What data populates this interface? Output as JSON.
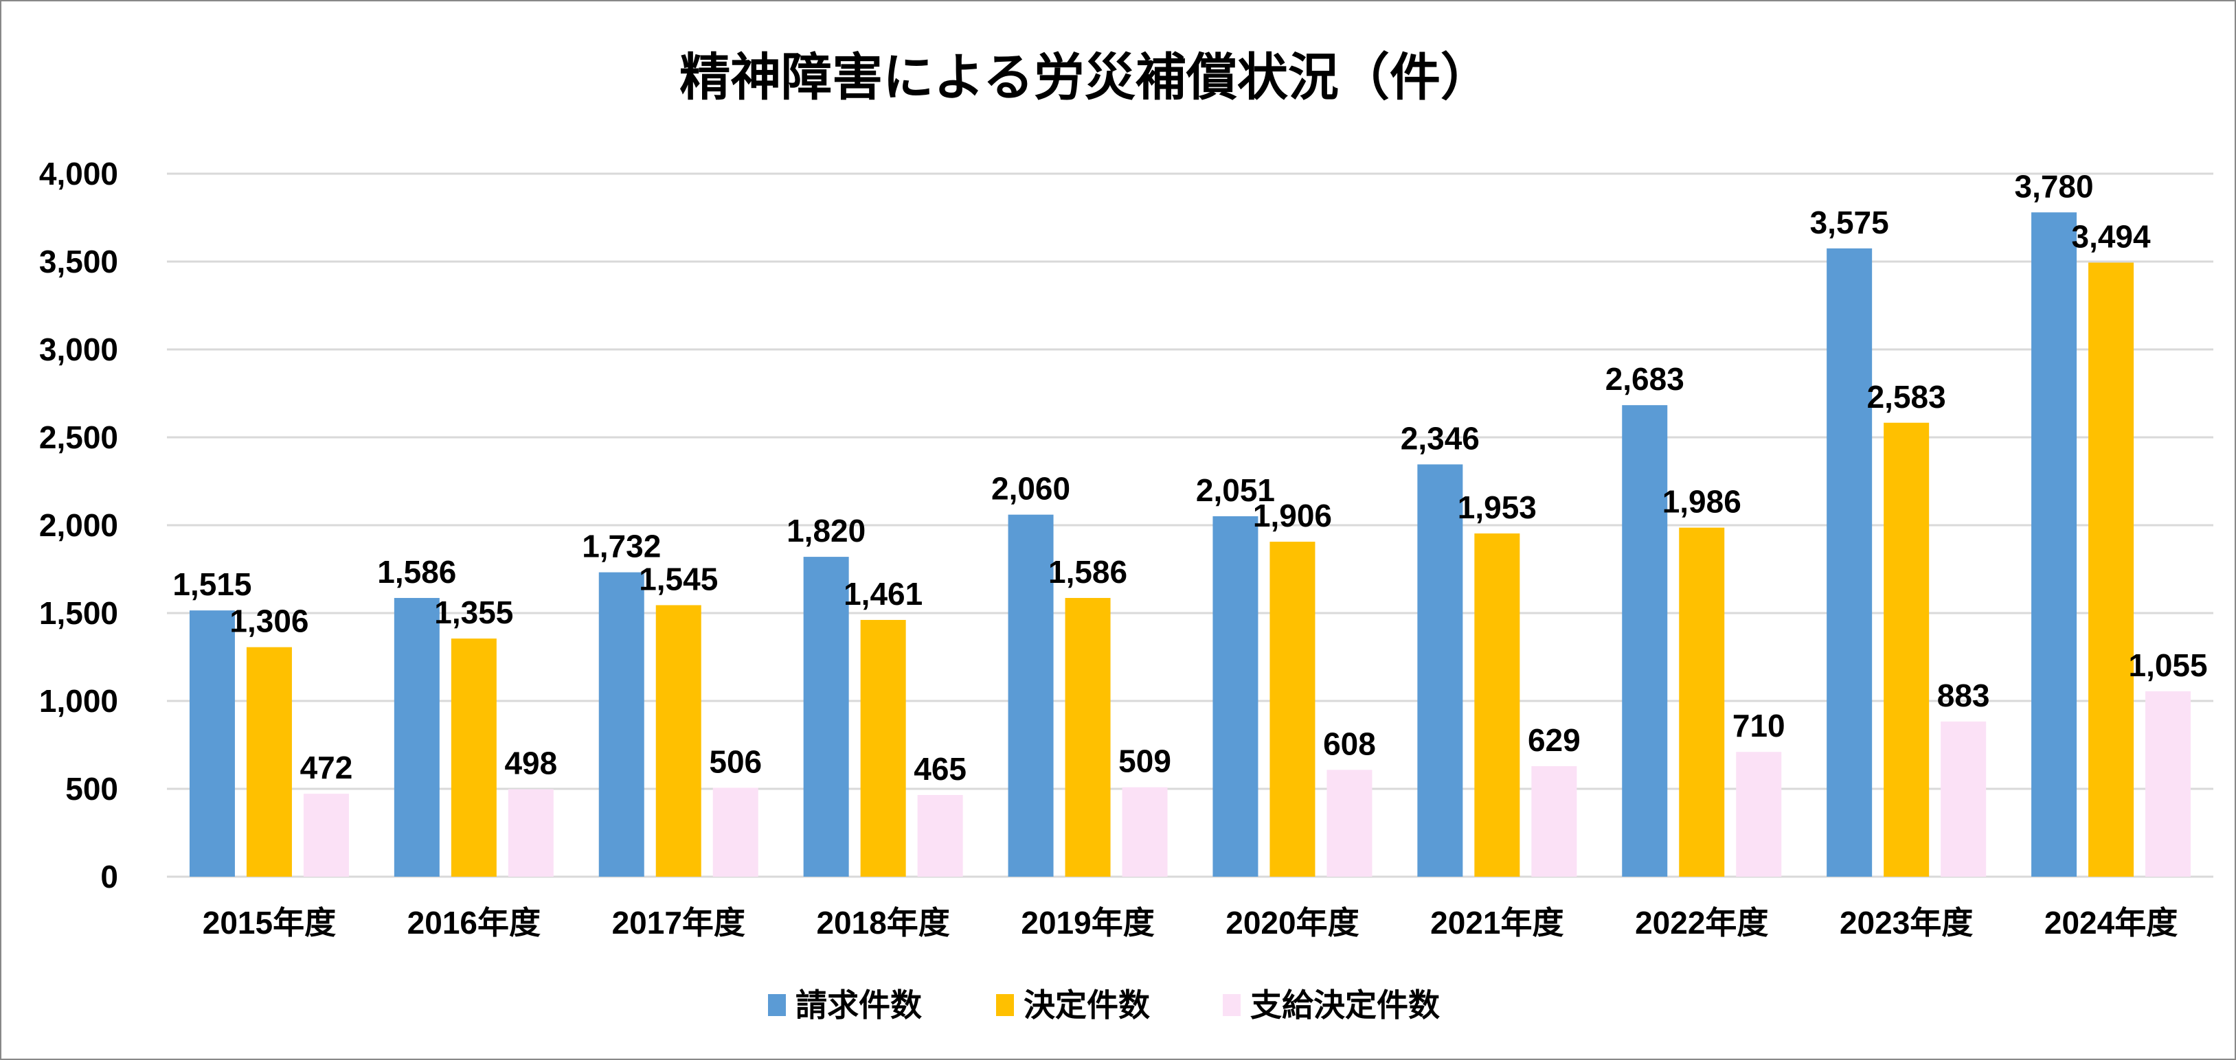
{
  "chart_data": {
    "type": "bar",
    "title": "精神障害による労災補償状況（件）",
    "xlabel": "",
    "ylabel": "",
    "categories": [
      "2015年度",
      "2016年度",
      "2017年度",
      "2018年度",
      "2019年度",
      "2020年度",
      "2021年度",
      "2022年度",
      "2023年度",
      "2024年度"
    ],
    "series": [
      {
        "name": "請求件数",
        "color": "#5B9BD5",
        "values": [
          1515,
          1586,
          1732,
          1820,
          2060,
          2051,
          2346,
          2683,
          3575,
          3780
        ]
      },
      {
        "name": "決定件数",
        "color": "#FFC000",
        "values": [
          1306,
          1355,
          1545,
          1461,
          1586,
          1906,
          1953,
          1986,
          2583,
          3494
        ]
      },
      {
        "name": "支給決定件数",
        "color": "#FBE1F6",
        "values": [
          472,
          498,
          506,
          465,
          509,
          608,
          629,
          710,
          883,
          1055
        ]
      }
    ],
    "ylim": [
      0,
      4000
    ],
    "yticks": [
      0,
      500,
      1000,
      1500,
      2000,
      2500,
      3000,
      3500,
      4000
    ],
    "ytick_labels": [
      "0",
      "500",
      "1,000",
      "1,500",
      "2,000",
      "2,500",
      "3,000",
      "3,500",
      "4,000"
    ],
    "grid": true,
    "gridline_color": "#D9D9D9",
    "legend_position": "bottom",
    "data_labels": true
  }
}
